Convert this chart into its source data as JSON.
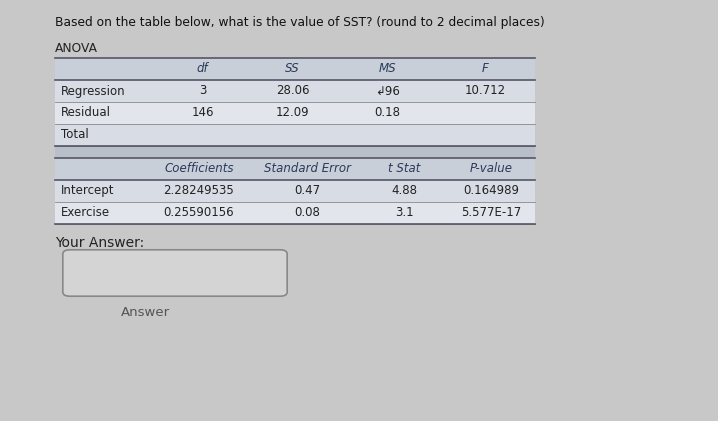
{
  "title": "Based on the table below, what is the value of SST? (round to 2 decimal places)",
  "anova_label": "ANOVA",
  "anova_headers": [
    "",
    "df",
    "SS",
    "MS",
    "F"
  ],
  "anova_rows": [
    [
      "Regression",
      "3",
      "28.06",
      "↲96",
      "10.712"
    ],
    [
      "Residual",
      "146",
      "12.09",
      "0.18",
      ""
    ],
    [
      "Total",
      "",
      "",
      "",
      ""
    ]
  ],
  "coeff_headers": [
    "",
    "Coefficients",
    "Standard Error",
    "t Stat",
    "P-value"
  ],
  "coeff_rows": [
    [
      "Intercept",
      "2.28249535",
      "0.47",
      "4.88",
      "0.164989"
    ],
    [
      "Exercise",
      "0.25590156",
      "0.08",
      "3.1",
      "5.577E-17"
    ]
  ],
  "your_answer_label": "Your Answer:",
  "answer_button_label": "Answer",
  "bg_color": "#c8c8c8",
  "table_row_odd": "#d8dce4",
  "table_row_even": "#e2e6ec",
  "table_header_bg": "#c8cfd8",
  "table_sep_bg": "#b8bfc8",
  "text_color": "#222222",
  "header_color": "#2a3a5a",
  "title_color": "#111111",
  "line_color": "#888888",
  "line_color_strong": "#555566"
}
